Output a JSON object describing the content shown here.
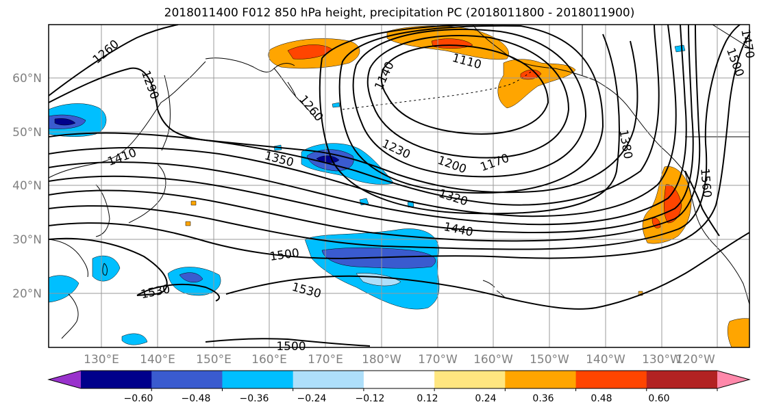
{
  "title": "2018011400 F012 850 hPa height, precipitation PC (2018011800 - 2018011900)",
  "lat_labels": [
    "60°N",
    "50°N",
    "40°N",
    "30°N",
    "20°N"
  ],
  "lon_labels": [
    "130°E",
    "140°E",
    "150°E",
    "160°E",
    "170°E",
    "180°W",
    "170°W",
    "160°W",
    "150°W",
    "140°W",
    "130°W",
    "120°W"
  ],
  "contour_labels": [
    "1260",
    "1290",
    "1260",
    "1140",
    "1110",
    "1230",
    "1200",
    "1170",
    "1380",
    "1410",
    "1350",
    "1560",
    "1320",
    "1440",
    "1500",
    "1530",
    "1530",
    "1500",
    "1500",
    "1470"
  ],
  "colorbar": {
    "ticks": [
      "−0.60",
      "−0.48",
      "−0.36",
      "−0.24",
      "−0.12",
      "0.12",
      "0.24",
      "0.36",
      "0.48",
      "0.60"
    ],
    "colors": [
      "#9932CC",
      "#00008B",
      "#3A5BCF",
      "#00BFFF",
      "#AEDFFA",
      "#FFFFFF",
      "#FFE680",
      "#FFA500",
      "#FF4500",
      "#B22222",
      "#FF88AA"
    ]
  },
  "colors": {
    "frame": "#000000",
    "grid": "#999999",
    "label": "#808080",
    "contour": "#000000"
  }
}
